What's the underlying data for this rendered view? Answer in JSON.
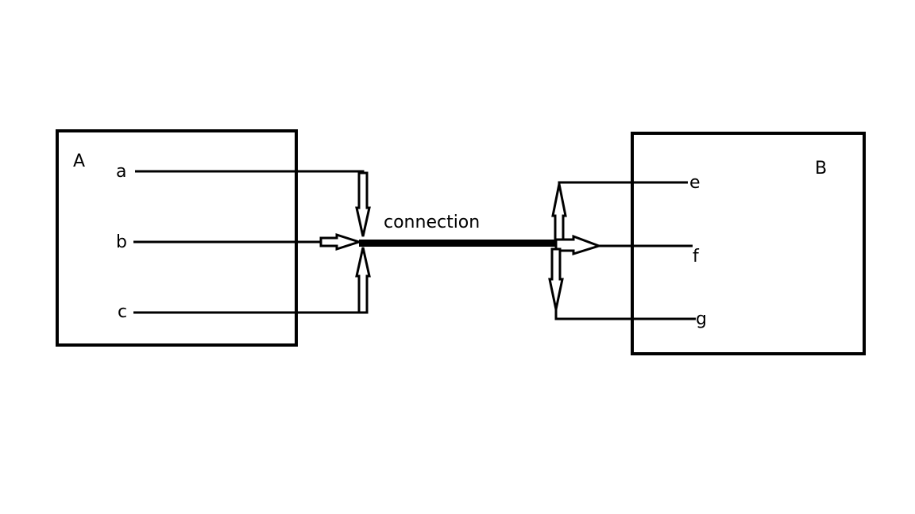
{
  "diagram": {
    "blocks": [
      {
        "id": "A",
        "label": "A",
        "ports": [
          "a",
          "b",
          "c"
        ]
      },
      {
        "id": "B",
        "label": "B",
        "ports": [
          "e",
          "f",
          "g"
        ]
      }
    ],
    "connection_label": "connection",
    "edges": [
      {
        "from": "a",
        "to": "connection"
      },
      {
        "from": "b",
        "to": "connection"
      },
      {
        "from": "c",
        "to": "connection"
      },
      {
        "from": "connection",
        "to": "e"
      },
      {
        "from": "connection",
        "to": "f"
      },
      {
        "from": "connection",
        "to": "g"
      }
    ]
  }
}
